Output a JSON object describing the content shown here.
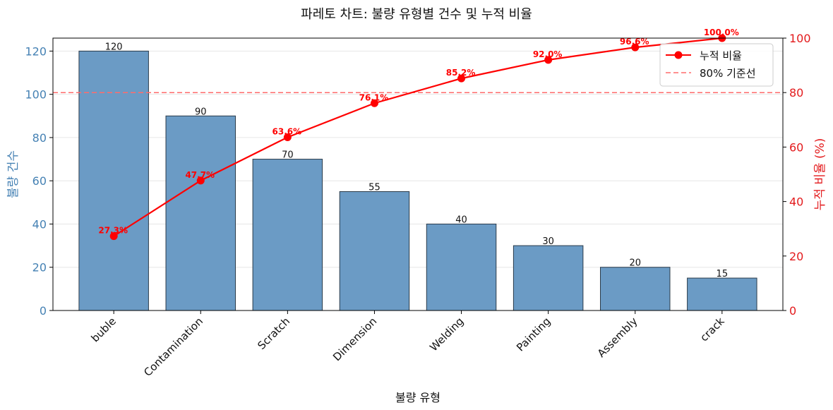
{
  "chart_data": {
    "type": "bar",
    "title": "파레토 차트: 불량 유형별 건수 및 누적 비율",
    "xlabel": "불량 유형",
    "ylabel": "불량 건수",
    "y2label": "누적 비율 (%)",
    "categories": [
      "buble",
      "Contamination",
      "Scratch",
      "Dimension",
      "Welding",
      "Painting",
      "Assembly",
      "crack"
    ],
    "series": [
      {
        "type": "bar",
        "values": [
          120,
          90,
          70,
          55,
          40,
          30,
          20,
          15
        ],
        "color": "#6b9bc5",
        "axis": "left"
      },
      {
        "type": "line",
        "name": "누적 비율",
        "values": [
          27.3,
          47.7,
          63.6,
          76.1,
          85.2,
          92.0,
          96.6,
          100.0
        ],
        "labels": [
          "27.3%",
          "47.7%",
          "63.6%",
          "76.1%",
          "85.2%",
          "92.0%",
          "96.6%",
          "100.0%"
        ],
        "color": "#ff0000",
        "axis": "right"
      }
    ],
    "reference_line": {
      "name": "80% 기준선",
      "value": 80,
      "axis": "right",
      "style": "dashed",
      "color": "#ff6b6b"
    },
    "ylim": [
      0,
      126
    ],
    "y2lim": [
      0,
      100
    ],
    "yticks": [
      0,
      20,
      40,
      60,
      80,
      100,
      120
    ],
    "y2ticks": [
      0,
      20,
      40,
      60,
      80,
      100
    ],
    "grid": "horizontal",
    "legend_position": "top-right"
  }
}
